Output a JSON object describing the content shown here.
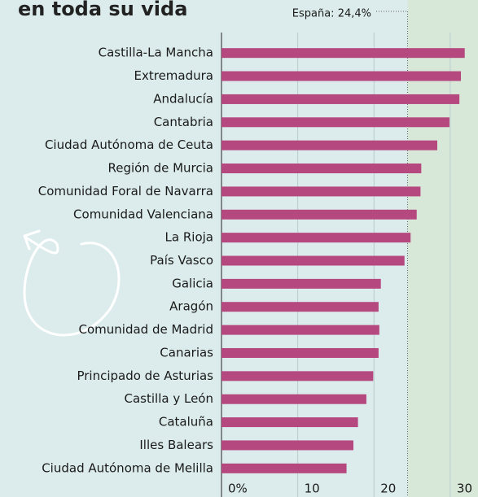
{
  "chart_data": {
    "type": "bar",
    "orientation": "horizontal",
    "title": "en toda su vida",
    "categories": [
      "Castilla-La Mancha",
      "Extremadura",
      "Andalucía",
      "Cantabria",
      "Ciudad Autónoma de Ceuta",
      "Región de Murcia",
      "Comunidad Foral de Navarra",
      "Comunidad Valenciana",
      "La Rioja",
      "País Vasco",
      "Galicia",
      "Aragón",
      "Comunidad de Madrid",
      "Canarias",
      "Principado de Asturias",
      "Castilla y León",
      "Cataluña",
      "Illes Balears",
      "Ciudad Autónoma de Melilla"
    ],
    "values": [
      31.9,
      31.4,
      31.2,
      29.9,
      28.3,
      26.2,
      26.1,
      25.6,
      24.8,
      24.0,
      20.9,
      20.6,
      20.7,
      20.6,
      19.9,
      19.0,
      17.9,
      17.3,
      16.4
    ],
    "color": "#b5487f",
    "xlim": [
      0,
      33
    ],
    "xticks": [
      {
        "value": 0,
        "label": "0%"
      },
      10,
      20,
      30
    ],
    "grid": true,
    "reference": {
      "value": 24.4,
      "label": "España: 24,4%"
    }
  }
}
